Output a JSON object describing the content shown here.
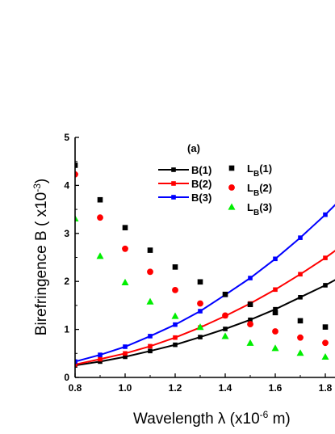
{
  "chart_data": {
    "type": "line",
    "panel_label": "(a)",
    "xlabel": "Wavelength λ (x10",
    "xlabel_sup": "-6",
    "xlabel_tail": " m)",
    "ylabel": "Birefringence B ( x10",
    "ylabel_sup": "-3",
    "ylabel_tail": ")",
    "xlim": [
      0.8,
      1.85
    ],
    "ylim": [
      0,
      5
    ],
    "x_ticks": [
      0.8,
      1.0,
      1.2,
      1.4,
      1.6,
      1.8
    ],
    "x_tick_labels": [
      "0.8",
      "1.0",
      "1.2",
      "1.4",
      "1.6",
      "1.8"
    ],
    "y_ticks": [
      0,
      1,
      2,
      3,
      4,
      5
    ],
    "y_tick_labels": [
      "0",
      "1",
      "2",
      "3",
      "4",
      "5"
    ],
    "legend_position": "top-right",
    "series": [
      {
        "name": "B(1)",
        "kind": "line",
        "marker": "square",
        "color": "#000000",
        "x": [
          0.8,
          0.9,
          1.0,
          1.1,
          1.2,
          1.3,
          1.4,
          1.5,
          1.6,
          1.7,
          1.8,
          1.85
        ],
        "values": [
          0.25,
          0.33,
          0.43,
          0.55,
          0.68,
          0.84,
          1.01,
          1.2,
          1.42,
          1.67,
          1.92,
          2.06
        ]
      },
      {
        "name": "B(2)",
        "kind": "line",
        "marker": "square",
        "color": "#ff0000",
        "x": [
          0.8,
          0.9,
          1.0,
          1.1,
          1.2,
          1.3,
          1.4,
          1.5,
          1.6,
          1.7,
          1.8,
          1.85
        ],
        "values": [
          0.27,
          0.38,
          0.5,
          0.65,
          0.83,
          1.04,
          1.28,
          1.54,
          1.83,
          2.15,
          2.49,
          2.68
        ]
      },
      {
        "name": "B(3)",
        "kind": "line",
        "marker": "square",
        "color": "#0000ff",
        "x": [
          0.8,
          0.9,
          1.0,
          1.1,
          1.2,
          1.3,
          1.4,
          1.5,
          1.6,
          1.7,
          1.8,
          1.85
        ],
        "values": [
          0.33,
          0.47,
          0.64,
          0.86,
          1.1,
          1.38,
          1.72,
          2.07,
          2.47,
          2.91,
          3.39,
          3.65
        ]
      },
      {
        "name": "L",
        "name_sub": "B",
        "name_tail": "(1)",
        "kind": "scatter",
        "marker": "square",
        "color": "#000000",
        "x": [
          0.8,
          0.9,
          1.0,
          1.1,
          1.2,
          1.3,
          1.4,
          1.5,
          1.6,
          1.7,
          1.8
        ],
        "values": [
          4.42,
          3.7,
          3.12,
          2.65,
          2.3,
          1.99,
          1.73,
          1.52,
          1.35,
          1.18,
          1.05
        ]
      },
      {
        "name": "L",
        "name_sub": "B",
        "name_tail": "(2)",
        "kind": "scatter",
        "marker": "circle",
        "color": "#ff0000",
        "x": [
          0.8,
          0.9,
          1.0,
          1.1,
          1.2,
          1.3,
          1.4,
          1.5,
          1.6,
          1.7,
          1.8
        ],
        "values": [
          4.23,
          3.33,
          2.68,
          2.2,
          1.82,
          1.54,
          1.29,
          1.11,
          0.96,
          0.83,
          0.72
        ]
      },
      {
        "name": "L",
        "name_sub": "B",
        "name_tail": "(3)",
        "kind": "scatter",
        "marker": "triangle",
        "color": "#00ee00",
        "x": [
          0.8,
          0.9,
          1.0,
          1.1,
          1.2,
          1.3,
          1.4,
          1.5,
          1.6,
          1.7,
          1.8
        ],
        "values": [
          3.31,
          2.53,
          1.98,
          1.58,
          1.28,
          1.05,
          0.86,
          0.72,
          0.61,
          0.51,
          0.43
        ]
      }
    ]
  }
}
